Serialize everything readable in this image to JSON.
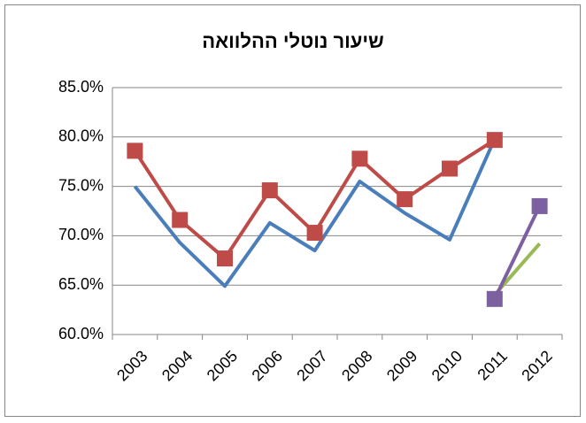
{
  "chart_data": {
    "type": "line",
    "title": "שיעור נוטלי ההלוואה",
    "categories": [
      "2003",
      "2004",
      "2005",
      "2006",
      "2007",
      "2008",
      "2009",
      "2010",
      "2011",
      "2012"
    ],
    "series": [
      {
        "color": "#4a7ebb",
        "marker": "none",
        "values": [
          75.0,
          69.3,
          64.9,
          71.3,
          68.5,
          75.5,
          72.3,
          69.6,
          79.8,
          null
        ]
      },
      {
        "color": "#be4b48",
        "marker": "square",
        "values": [
          78.6,
          71.6,
          67.7,
          74.6,
          70.3,
          77.8,
          73.7,
          76.8,
          79.7,
          null
        ]
      },
      {
        "color": "#98b954",
        "marker": "none",
        "values": [
          null,
          null,
          null,
          null,
          null,
          null,
          null,
          null,
          64.0,
          69.2
        ]
      },
      {
        "color": "#7d60a0",
        "marker": "square",
        "values": [
          null,
          null,
          null,
          null,
          null,
          null,
          null,
          null,
          63.6,
          73.0
        ]
      }
    ],
    "ylim": [
      60,
      85
    ],
    "yticks": [
      {
        "value": 60,
        "label": "60.0%"
      },
      {
        "value": 65,
        "label": "65.0%"
      },
      {
        "value": 70,
        "label": "70.0%"
      },
      {
        "value": 75,
        "label": "75.0%"
      },
      {
        "value": 80,
        "label": "80.0%"
      },
      {
        "value": 85,
        "label": "85.0%"
      }
    ],
    "grid": true
  }
}
